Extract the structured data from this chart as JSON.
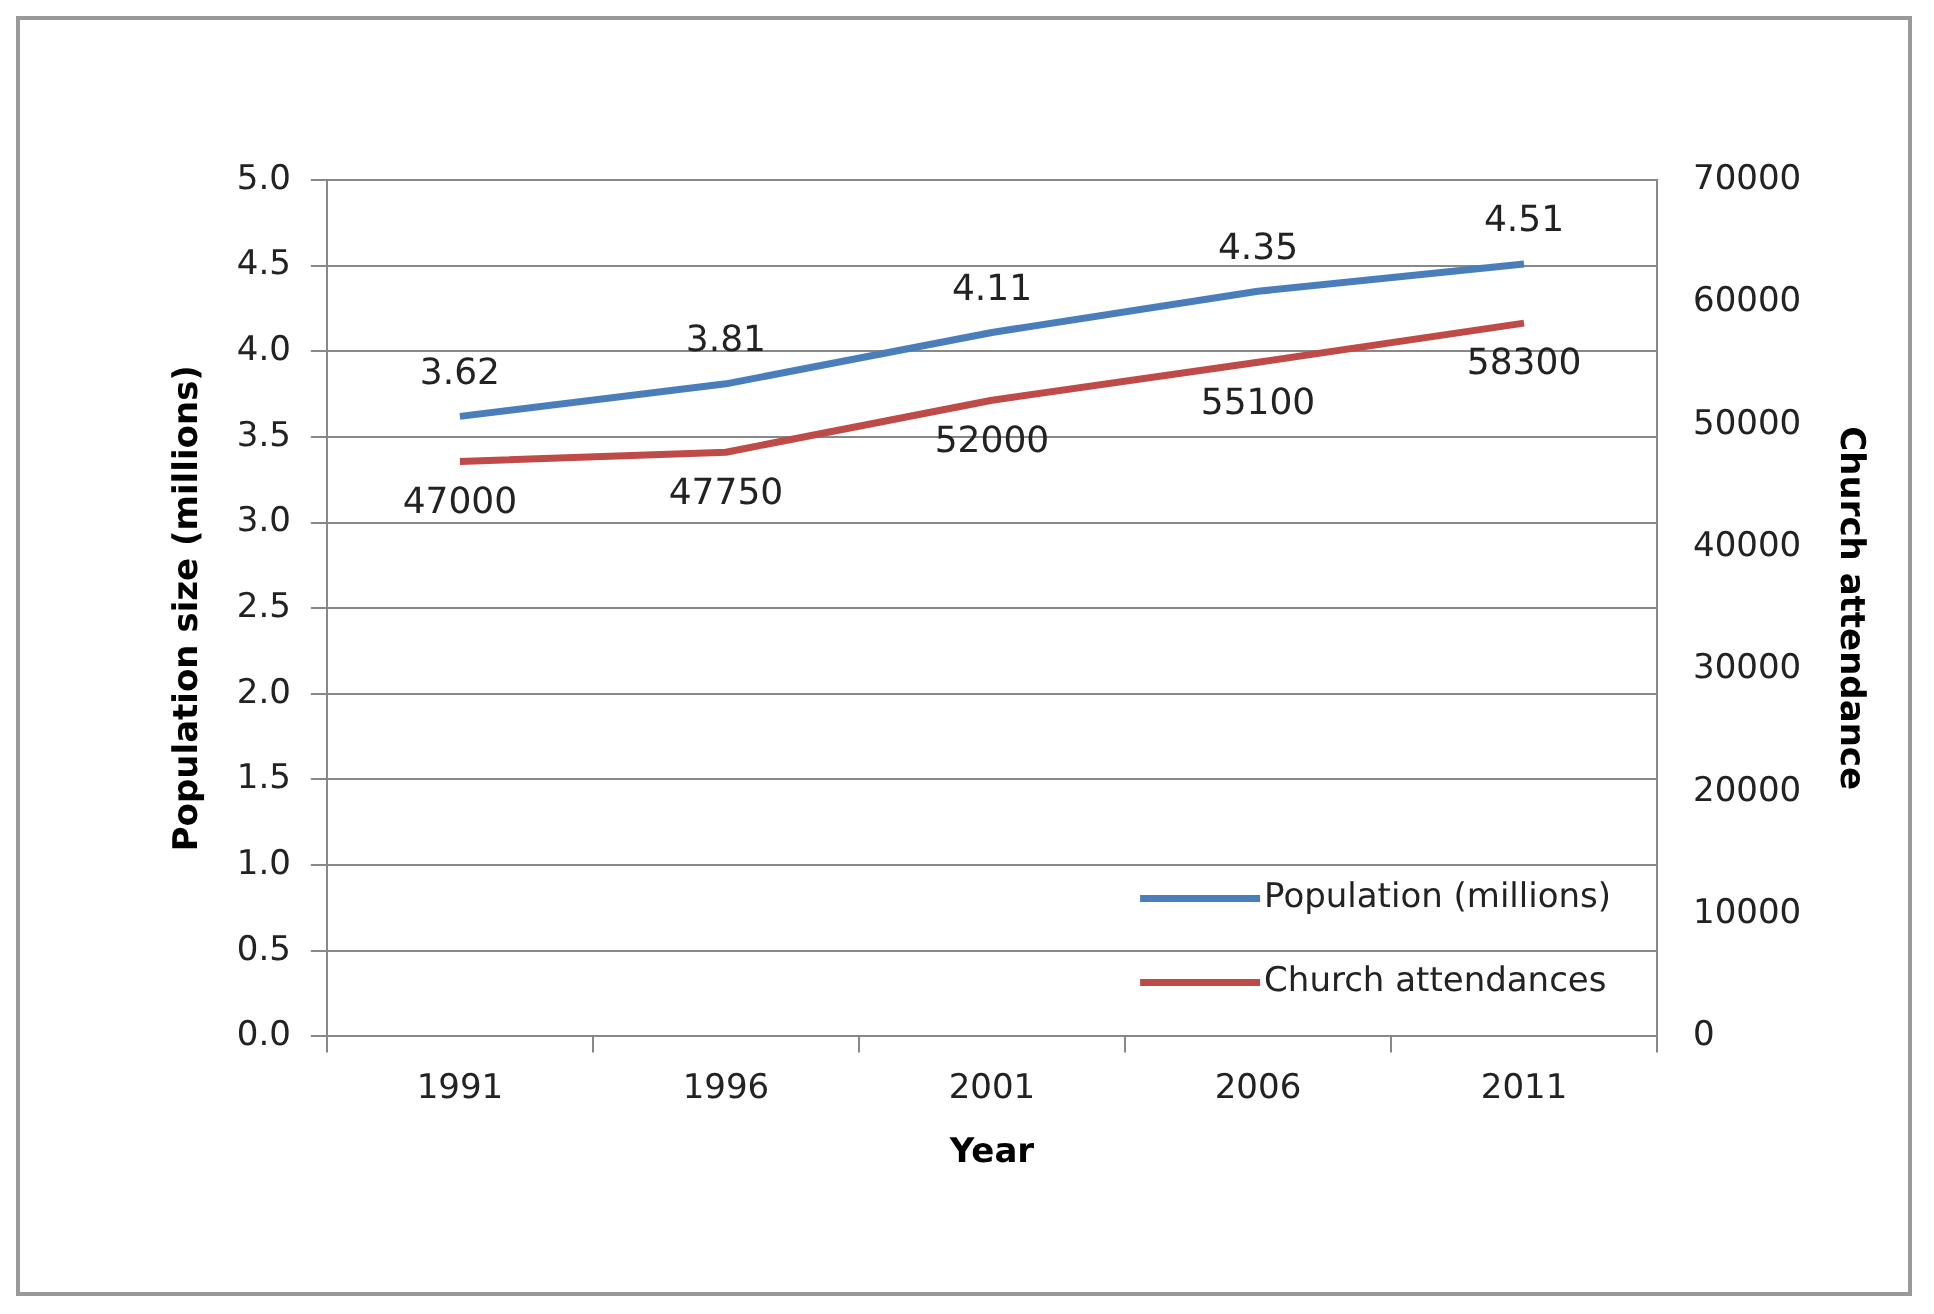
{
  "chart_data": {
    "type": "line",
    "xlabel": "Year",
    "ylabel": "Population size (millions)",
    "y2label": "Church attendance",
    "categories": [
      "1991",
      "1996",
      "2001",
      "2006",
      "2011"
    ],
    "series": [
      {
        "name": "Population (millions)",
        "color": "#4a7ebb",
        "values": [
          3.62,
          3.81,
          4.11,
          4.35,
          4.51
        ]
      },
      {
        "name": "Church attendances",
        "color": "#be4b48",
        "axis": "y2",
        "values": [
          47000,
          47750,
          52000,
          55100,
          58300
        ]
      }
    ],
    "ylim": [
      0,
      5
    ],
    "yticks": [
      {
        "value": 0,
        "label": "0.0"
      },
      0.5,
      {
        "value": 1,
        "label": "1.0"
      },
      1.5,
      {
        "value": 2,
        "label": "2.0"
      },
      2.5,
      {
        "value": 3,
        "label": "3.0"
      },
      3.5,
      {
        "value": 4,
        "label": "4.0"
      },
      4.5,
      {
        "value": 5,
        "label": "5.0"
      }
    ],
    "y2lim": [
      0,
      70000
    ],
    "y2ticks": [
      0,
      10000,
      20000,
      30000,
      40000,
      50000,
      60000,
      70000
    ],
    "grid": "y",
    "legend": "bottom right",
    "data_labels": true,
    "marker": "none",
    "line_style": "solid"
  }
}
